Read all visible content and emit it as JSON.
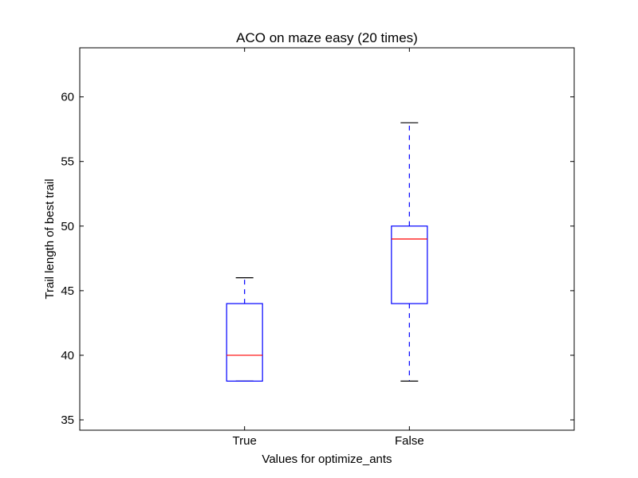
{
  "chart_data": {
    "type": "box",
    "title": "ACO on maze easy (20 times)",
    "xlabel": "Values for optimize_ants",
    "ylabel": "Trail length of best trail",
    "categories": [
      "True",
      "False"
    ],
    "boxes": [
      {
        "label": "True",
        "whisker_low": 38,
        "q1": 38,
        "median": 40,
        "q3": 44,
        "whisker_high": 46
      },
      {
        "label": "False",
        "whisker_low": 38,
        "q1": 44,
        "median": 49,
        "q3": 50,
        "whisker_high": 58
      }
    ],
    "ylim": [
      34.2,
      63.8
    ],
    "yticks": [
      35,
      40,
      45,
      50,
      55,
      60
    ],
    "ytick_labels": [
      "35",
      "40",
      "45",
      "50",
      "55",
      "60"
    ],
    "colors": {
      "box": "#0000ff",
      "median": "#ff0000",
      "whisker": "#0000ff",
      "cap": "#000000"
    },
    "grid": false
  }
}
